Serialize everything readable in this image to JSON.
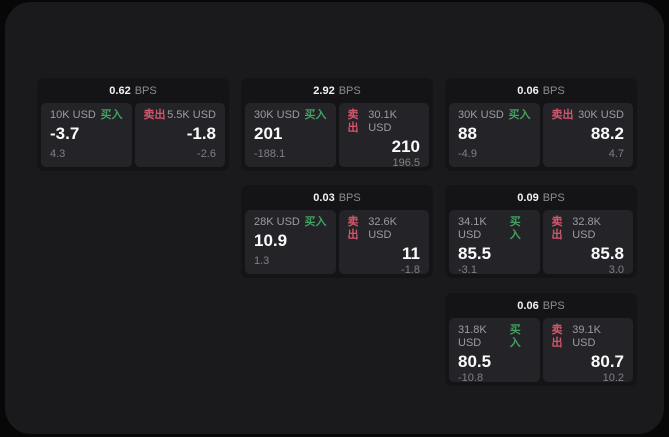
{
  "page": {
    "background": "#070708",
    "surface_color": "#1a1a1c",
    "card_color": "#141416",
    "cell_color": "#242428"
  },
  "labels": {
    "bps_unit": "BPS",
    "buy": "买入",
    "sell": "卖出"
  },
  "colors": {
    "buy": "#43a05f",
    "sell": "#d4566b"
  },
  "cards": [
    {
      "bps": "0.62",
      "col": 1,
      "row": 1,
      "buy": {
        "size": "10K USD",
        "value": "-3.7",
        "delta": "4.3"
      },
      "sell": {
        "size": "5.5K USD",
        "value": "-1.8",
        "delta": "-2.6"
      }
    },
    {
      "bps": "2.92",
      "col": 2,
      "row": 1,
      "buy": {
        "size": "30K USD",
        "value": "201",
        "delta": "-188.1"
      },
      "sell": {
        "size": "30.1K USD",
        "value": "210",
        "delta": "196.5"
      }
    },
    {
      "bps": "0.06",
      "col": 3,
      "row": 1,
      "buy": {
        "size": "30K USD",
        "value": "88",
        "delta": "-4.9"
      },
      "sell": {
        "size": "30K USD",
        "value": "88.2",
        "delta": "4.7"
      }
    },
    {
      "bps": "0.03",
      "col": 2,
      "row": 2,
      "buy": {
        "size": "28K USD",
        "value": "10.9",
        "delta": "1.3"
      },
      "sell": {
        "size": "32.6K USD",
        "value": "11",
        "delta": "-1.8"
      }
    },
    {
      "bps": "0.09",
      "col": 3,
      "row": 2,
      "buy": {
        "size": "34.1K USD",
        "value": "85.5",
        "delta": "-3.1"
      },
      "sell": {
        "size": "32.8K USD",
        "value": "85.8",
        "delta": "3.0"
      }
    },
    {
      "bps": "0.06",
      "col": 3,
      "row": 3,
      "buy": {
        "size": "31.8K USD",
        "value": "80.5",
        "delta": "-10.8"
      },
      "sell": {
        "size": "39.1K USD",
        "value": "80.7",
        "delta": "10.2"
      }
    }
  ]
}
